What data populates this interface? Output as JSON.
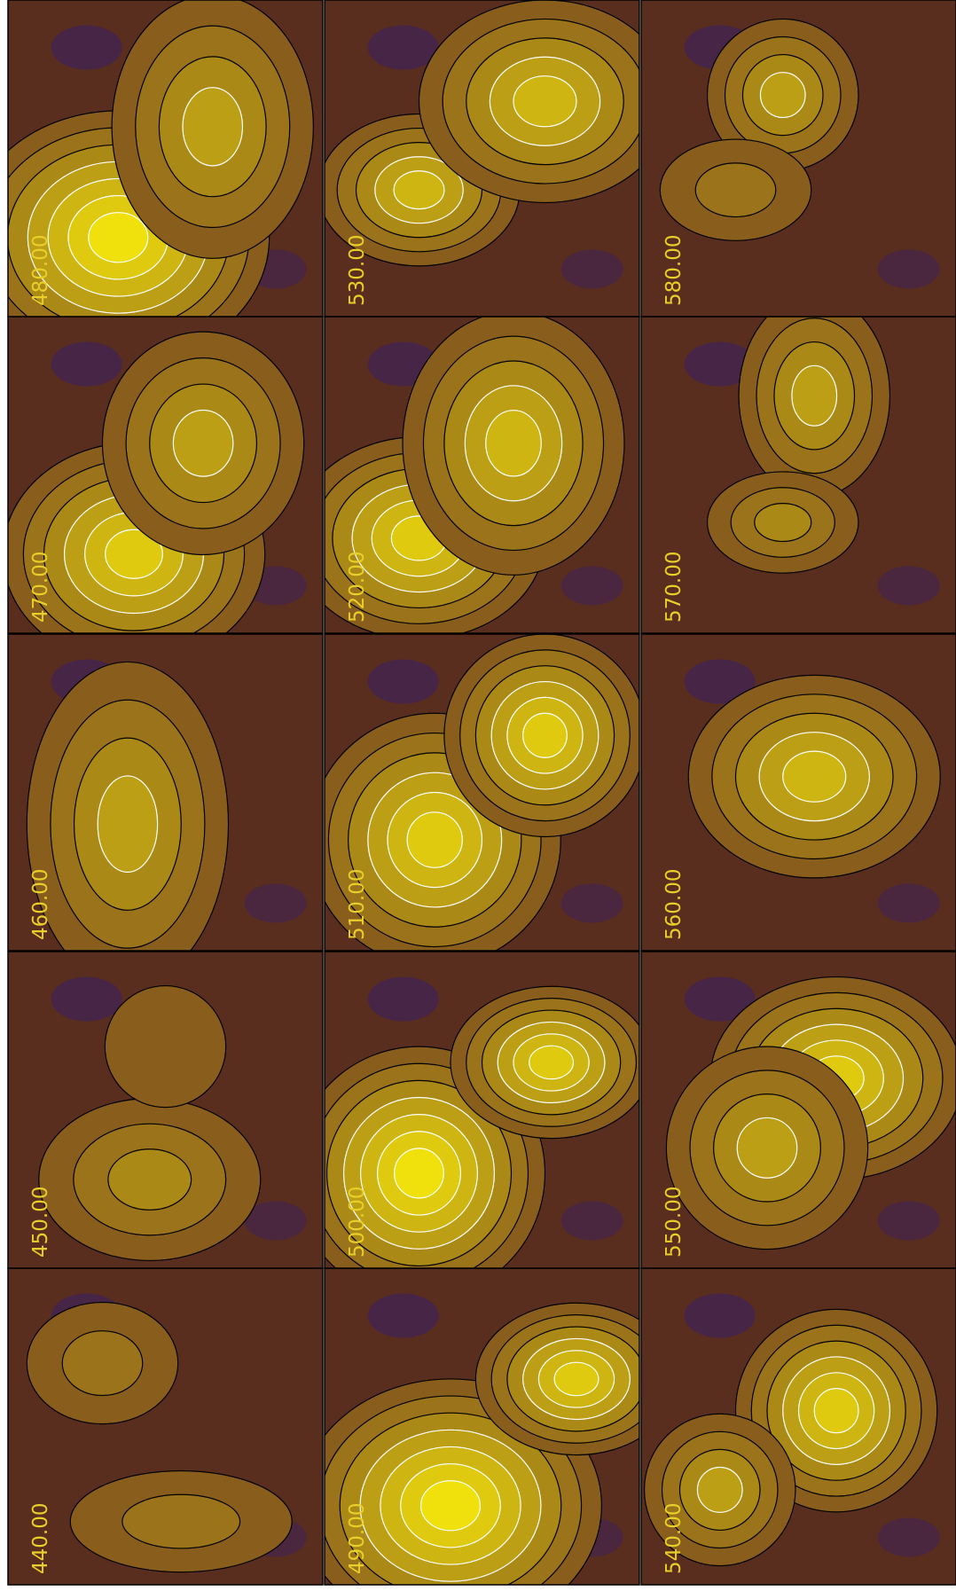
{
  "panels": [
    {
      "label": "440.00"
    },
    {
      "label": "450.00"
    },
    {
      "label": "460.00"
    },
    {
      "label": "470.00"
    },
    {
      "label": "480.00"
    },
    {
      "label": "490.00"
    },
    {
      "label": "500.00"
    },
    {
      "label": "510.00"
    },
    {
      "label": "520.00"
    },
    {
      "label": "530.00"
    },
    {
      "label": "540.00"
    },
    {
      "label": "550.00"
    },
    {
      "label": "560.00"
    },
    {
      "label": "570.00"
    },
    {
      "label": "580.00"
    }
  ]
}
